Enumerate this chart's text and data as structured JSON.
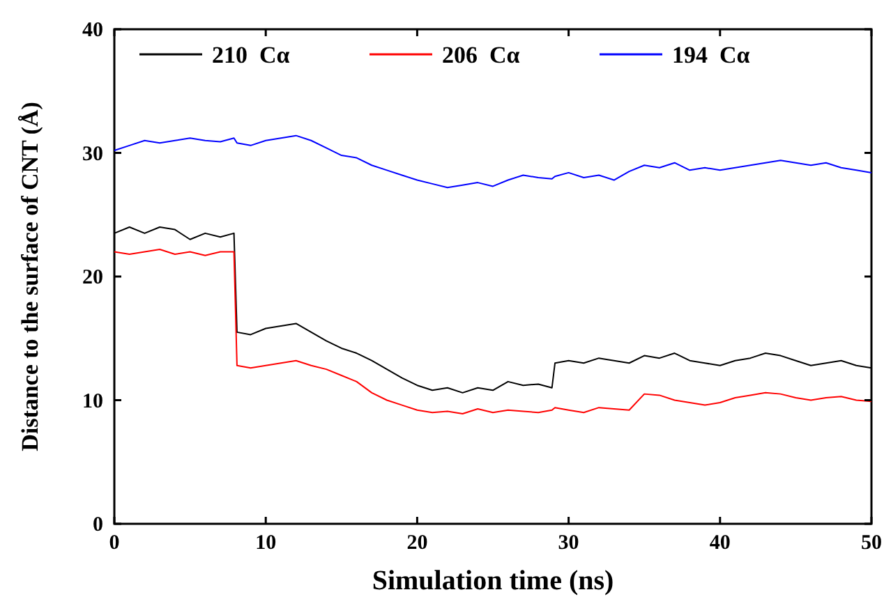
{
  "chart_data": {
    "type": "line",
    "xlabel": "Simulation time (ns)",
    "ylabel": "Distance to the surface of CNT (Å)",
    "xlim": [
      0,
      50
    ],
    "ylim": [
      0,
      40
    ],
    "xticks": [
      0,
      10,
      20,
      30,
      40,
      50
    ],
    "yticks": [
      0,
      10,
      20,
      30,
      40
    ],
    "legend": "top",
    "grid": false,
    "marker": "none",
    "line_style": "solid",
    "x": [
      0,
      1,
      2,
      3,
      4,
      5,
      6,
      7,
      7.9,
      8.1,
      9,
      10,
      11,
      12,
      13,
      14,
      15,
      16,
      17,
      18,
      19,
      20,
      21,
      22,
      23,
      24,
      25,
      26,
      27,
      28,
      28.9,
      29.1,
      30,
      31,
      32,
      33,
      34,
      35,
      36,
      37,
      38,
      39,
      40,
      41,
      42,
      43,
      44,
      45,
      46,
      47,
      48,
      49,
      50
    ],
    "series": [
      {
        "name": "210  Cα",
        "color": "#000000",
        "values": [
          23.5,
          24,
          23.5,
          24,
          23.8,
          23,
          23.5,
          23.2,
          23.5,
          15.5,
          15.3,
          15.8,
          16,
          16.2,
          15.5,
          14.8,
          14.2,
          13.8,
          13.2,
          12.5,
          11.8,
          11.2,
          10.8,
          11,
          10.6,
          11,
          10.8,
          11.5,
          11.2,
          11.3,
          11,
          13,
          13.2,
          13,
          13.4,
          13.2,
          13,
          13.6,
          13.4,
          13.8,
          13.2,
          13,
          12.8,
          13.2,
          13.4,
          13.8,
          13.6,
          13.2,
          12.8,
          13,
          13.2,
          12.8,
          12.6
        ]
      },
      {
        "name": "206  Cα",
        "color": "#ff0000",
        "values": [
          22,
          21.8,
          22,
          22.2,
          21.8,
          22,
          21.7,
          22,
          22,
          12.8,
          12.6,
          12.8,
          13,
          13.2,
          12.8,
          12.5,
          12,
          11.5,
          10.6,
          10,
          9.6,
          9.2,
          9,
          9.1,
          8.9,
          9.3,
          9,
          9.2,
          9.1,
          9,
          9.2,
          9.4,
          9.2,
          9,
          9.4,
          9.3,
          9.2,
          10.5,
          10.4,
          10,
          9.8,
          9.6,
          9.8,
          10.2,
          10.4,
          10.6,
          10.5,
          10.2,
          10,
          10.2,
          10.3,
          10,
          9.9
        ]
      },
      {
        "name": "194  Cα",
        "color": "#0000ff",
        "values": [
          30.2,
          30.6,
          31,
          30.8,
          31,
          31.2,
          31,
          30.9,
          31.2,
          30.8,
          30.6,
          31,
          31.2,
          31.4,
          31,
          30.4,
          29.8,
          29.6,
          29,
          28.6,
          28.2,
          27.8,
          27.5,
          27.2,
          27.4,
          27.6,
          27.3,
          27.8,
          28.2,
          28,
          27.9,
          28.1,
          28.4,
          28,
          28.2,
          27.8,
          28.5,
          29,
          28.8,
          29.2,
          28.6,
          28.8,
          28.6,
          28.8,
          29,
          29.2,
          29.4,
          29.2,
          29,
          29.2,
          28.8,
          28.6,
          28.4
        ]
      }
    ]
  }
}
